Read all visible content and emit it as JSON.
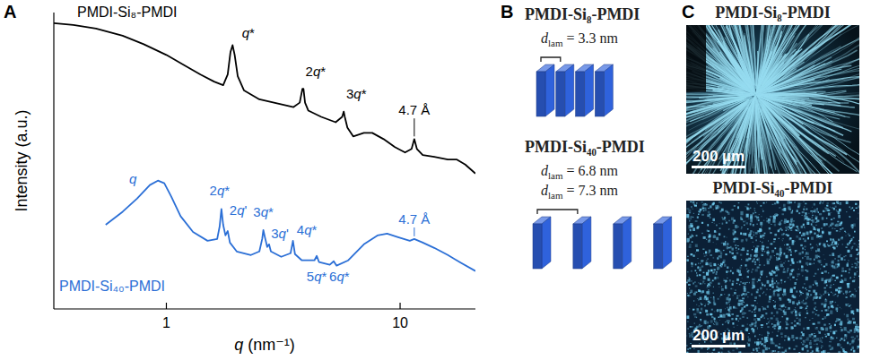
{
  "chart_data": {
    "type": "line",
    "panel": "A",
    "x_label": "q (nm⁻¹)",
    "y_label": "Intensity (a.u.)",
    "log": "x",
    "grid": false,
    "tick_labels": "x",
    "xlim": [
      0.33,
      21
    ],
    "xticks": [
      1,
      10
    ],
    "ylim": [
      0,
      100
    ],
    "series": [
      {
        "name": "PMDI-Si₈-PMDI",
        "color": "#000000",
        "x": [
          0.33,
          0.4,
          0.5,
          0.65,
          0.8,
          1.0,
          1.2,
          1.4,
          1.6,
          1.75,
          1.83,
          1.88,
          1.92,
          1.96,
          2.02,
          2.15,
          2.5,
          3.0,
          3.5,
          3.72,
          3.82,
          3.86,
          3.92,
          4.05,
          4.6,
          5.3,
          5.65,
          5.74,
          5.8,
          5.95,
          6.3,
          7.0,
          7.6,
          8.5,
          9.5,
          10.5,
          11.2,
          11.5,
          11.8,
          12.5,
          14,
          16,
          17.5,
          19,
          21
        ],
        "values": [
          96.4,
          95.8,
          94.6,
          92.2,
          89.3,
          85.7,
          82.1,
          79.1,
          76.7,
          75.5,
          79.1,
          86.6,
          89.0,
          85.7,
          78.5,
          73.7,
          70.7,
          69.3,
          68.1,
          69.6,
          74.3,
          74.3,
          69.6,
          66.9,
          64.8,
          63.0,
          64.8,
          66.6,
          64.8,
          61.2,
          58.2,
          59.4,
          59.4,
          57.3,
          54.6,
          52.8,
          54.0,
          57.3,
          54.0,
          51.9,
          51.3,
          50.4,
          50.4,
          48.7,
          45.7
        ],
        "annotations": [
          {
            "text": "q*",
            "x": 2.24,
            "y": 91.5
          },
          {
            "text": "2q*",
            "x": 4.35,
            "y": 78.5
          },
          {
            "text": "3q*",
            "x": 6.5,
            "y": 71.0
          },
          {
            "text": "4.7 Å",
            "x": 11.5,
            "y": 65.5,
            "point": [
              11.5,
              57.3
            ]
          }
        ]
      },
      {
        "name": "PMDI-Si₄₀-PMDI",
        "color": "#2b6fd6",
        "x": [
          0.55,
          0.65,
          0.75,
          0.85,
          0.92,
          0.98,
          1.05,
          1.15,
          1.3,
          1.5,
          1.65,
          1.69,
          1.72,
          1.75,
          1.79,
          1.83,
          1.87,
          2.0,
          2.3,
          2.5,
          2.57,
          2.6,
          2.64,
          2.7,
          2.75,
          2.8,
          3.1,
          3.4,
          3.48,
          3.55,
          3.8,
          4.3,
          4.4,
          4.5,
          5.0,
          5.2,
          5.35,
          6.0,
          7.0,
          8.0,
          8.8,
          9.8,
          11.0,
          11.5,
          12.5,
          14,
          16,
          18,
          21
        ],
        "values": [
          28.4,
          32.8,
          37.3,
          41.8,
          43.3,
          42.4,
          37.9,
          31.3,
          26.0,
          23.0,
          23.6,
          27.8,
          33.7,
          28.4,
          24.8,
          26.3,
          22.4,
          19.4,
          18.2,
          19.4,
          23.6,
          26.6,
          24.2,
          20.9,
          21.8,
          19.4,
          17.6,
          18.8,
          23.0,
          18.5,
          16.4,
          16.4,
          17.9,
          15.8,
          14.9,
          16.1,
          14.6,
          16.4,
          21.8,
          24.8,
          25.4,
          24.2,
          23.0,
          23.6,
          22.4,
          20.6,
          18.2,
          15.8,
          12.8
        ],
        "annotations": [
          {
            "text": "q",
            "x": 0.72,
            "y": 42.3
          },
          {
            "text": "2q*",
            "x": 1.69,
            "y": 38.4
          },
          {
            "text": "2q'",
            "x": 2.03,
            "y": 31.7
          },
          {
            "text": "3q*",
            "x": 2.6,
            "y": 31.1
          },
          {
            "text": "3q'",
            "x": 3.06,
            "y": 23.9
          },
          {
            "text": "4q*",
            "x": 3.99,
            "y": 25.0
          },
          {
            "text": "5q*",
            "x": 4.4,
            "y": 9.4
          },
          {
            "text": "6q*",
            "x": 5.5,
            "y": 9.4
          },
          {
            "text": "4.7 Å",
            "x": 11.5,
            "y": 28.7,
            "point": [
              11.5,
              23.6
            ]
          }
        ]
      }
    ]
  },
  "diagram": {
    "panel": "B",
    "color": "#2f62dc",
    "items": [
      {
        "title": "PMDI-Si₈-PMDI",
        "spacings": [
          {
            "symbol": "d",
            "subscript": "lam",
            "operator": "=",
            "value": 3.3,
            "unit": "nm"
          }
        ]
      },
      {
        "title": "PMDI-Si₄₀-PMDI",
        "spacings": [
          {
            "symbol": "d",
            "subscript": "lam",
            "operator": "=",
            "value": 6.8,
            "unit": "nm"
          },
          {
            "symbol": "d",
            "subscript": "lam",
            "operator": "=",
            "value": 7.3,
            "unit": "nm"
          }
        ]
      }
    ]
  },
  "micrographs": {
    "panel": "C",
    "items": [
      {
        "title": "PMDI-Si₈-PMDI",
        "scale_bar": "200 µm"
      },
      {
        "title": "PMDI-Si₄₀-PMDI",
        "scale_bar": "200 µm"
      }
    ]
  }
}
